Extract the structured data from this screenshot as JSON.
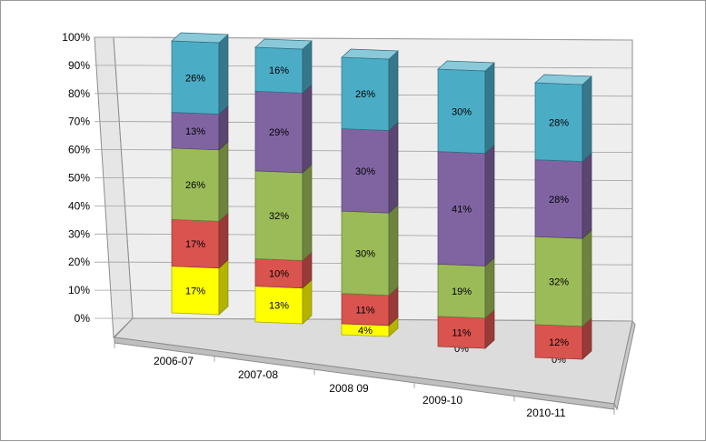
{
  "chart_data": {
    "type": "bar",
    "stacked": true,
    "percent_stacked": true,
    "three_d": true,
    "categories": [
      "2006-07",
      "2007-08",
      "2008 09",
      "2009-10",
      "2010-11"
    ],
    "series": [
      {
        "color": "#ffff00",
        "values": [
          17,
          13,
          4,
          0,
          0
        ],
        "labels": [
          "17%",
          "13%",
          "4%",
          "0%",
          "0%"
        ]
      },
      {
        "color": "#d9534f",
        "values": [
          17,
          10,
          11,
          11,
          12
        ],
        "labels": [
          "17%",
          "10%",
          "11%",
          "11%",
          "12%"
        ]
      },
      {
        "color": "#9bbb59",
        "values": [
          26,
          32,
          30,
          19,
          32
        ],
        "labels": [
          "26%",
          "32%",
          "30%",
          "19%",
          "32%"
        ]
      },
      {
        "color": "#8064a2",
        "values": [
          13,
          29,
          30,
          41,
          28
        ],
        "labels": [
          "13%",
          "29%",
          "30%",
          "41%",
          "28%"
        ]
      },
      {
        "color": "#4bacc6",
        "values": [
          26,
          16,
          26,
          30,
          28
        ],
        "labels": [
          "26%",
          "16%",
          "26%",
          "30%",
          "28%"
        ]
      }
    ],
    "yticks": [
      "0%",
      "10%",
      "20%",
      "30%",
      "40%",
      "50%",
      "60%",
      "70%",
      "80%",
      "90%",
      "100%"
    ],
    "ylim": [
      0,
      100
    ],
    "grid": true,
    "legend": "none",
    "title": "",
    "xlabel": "",
    "ylabel": ""
  }
}
